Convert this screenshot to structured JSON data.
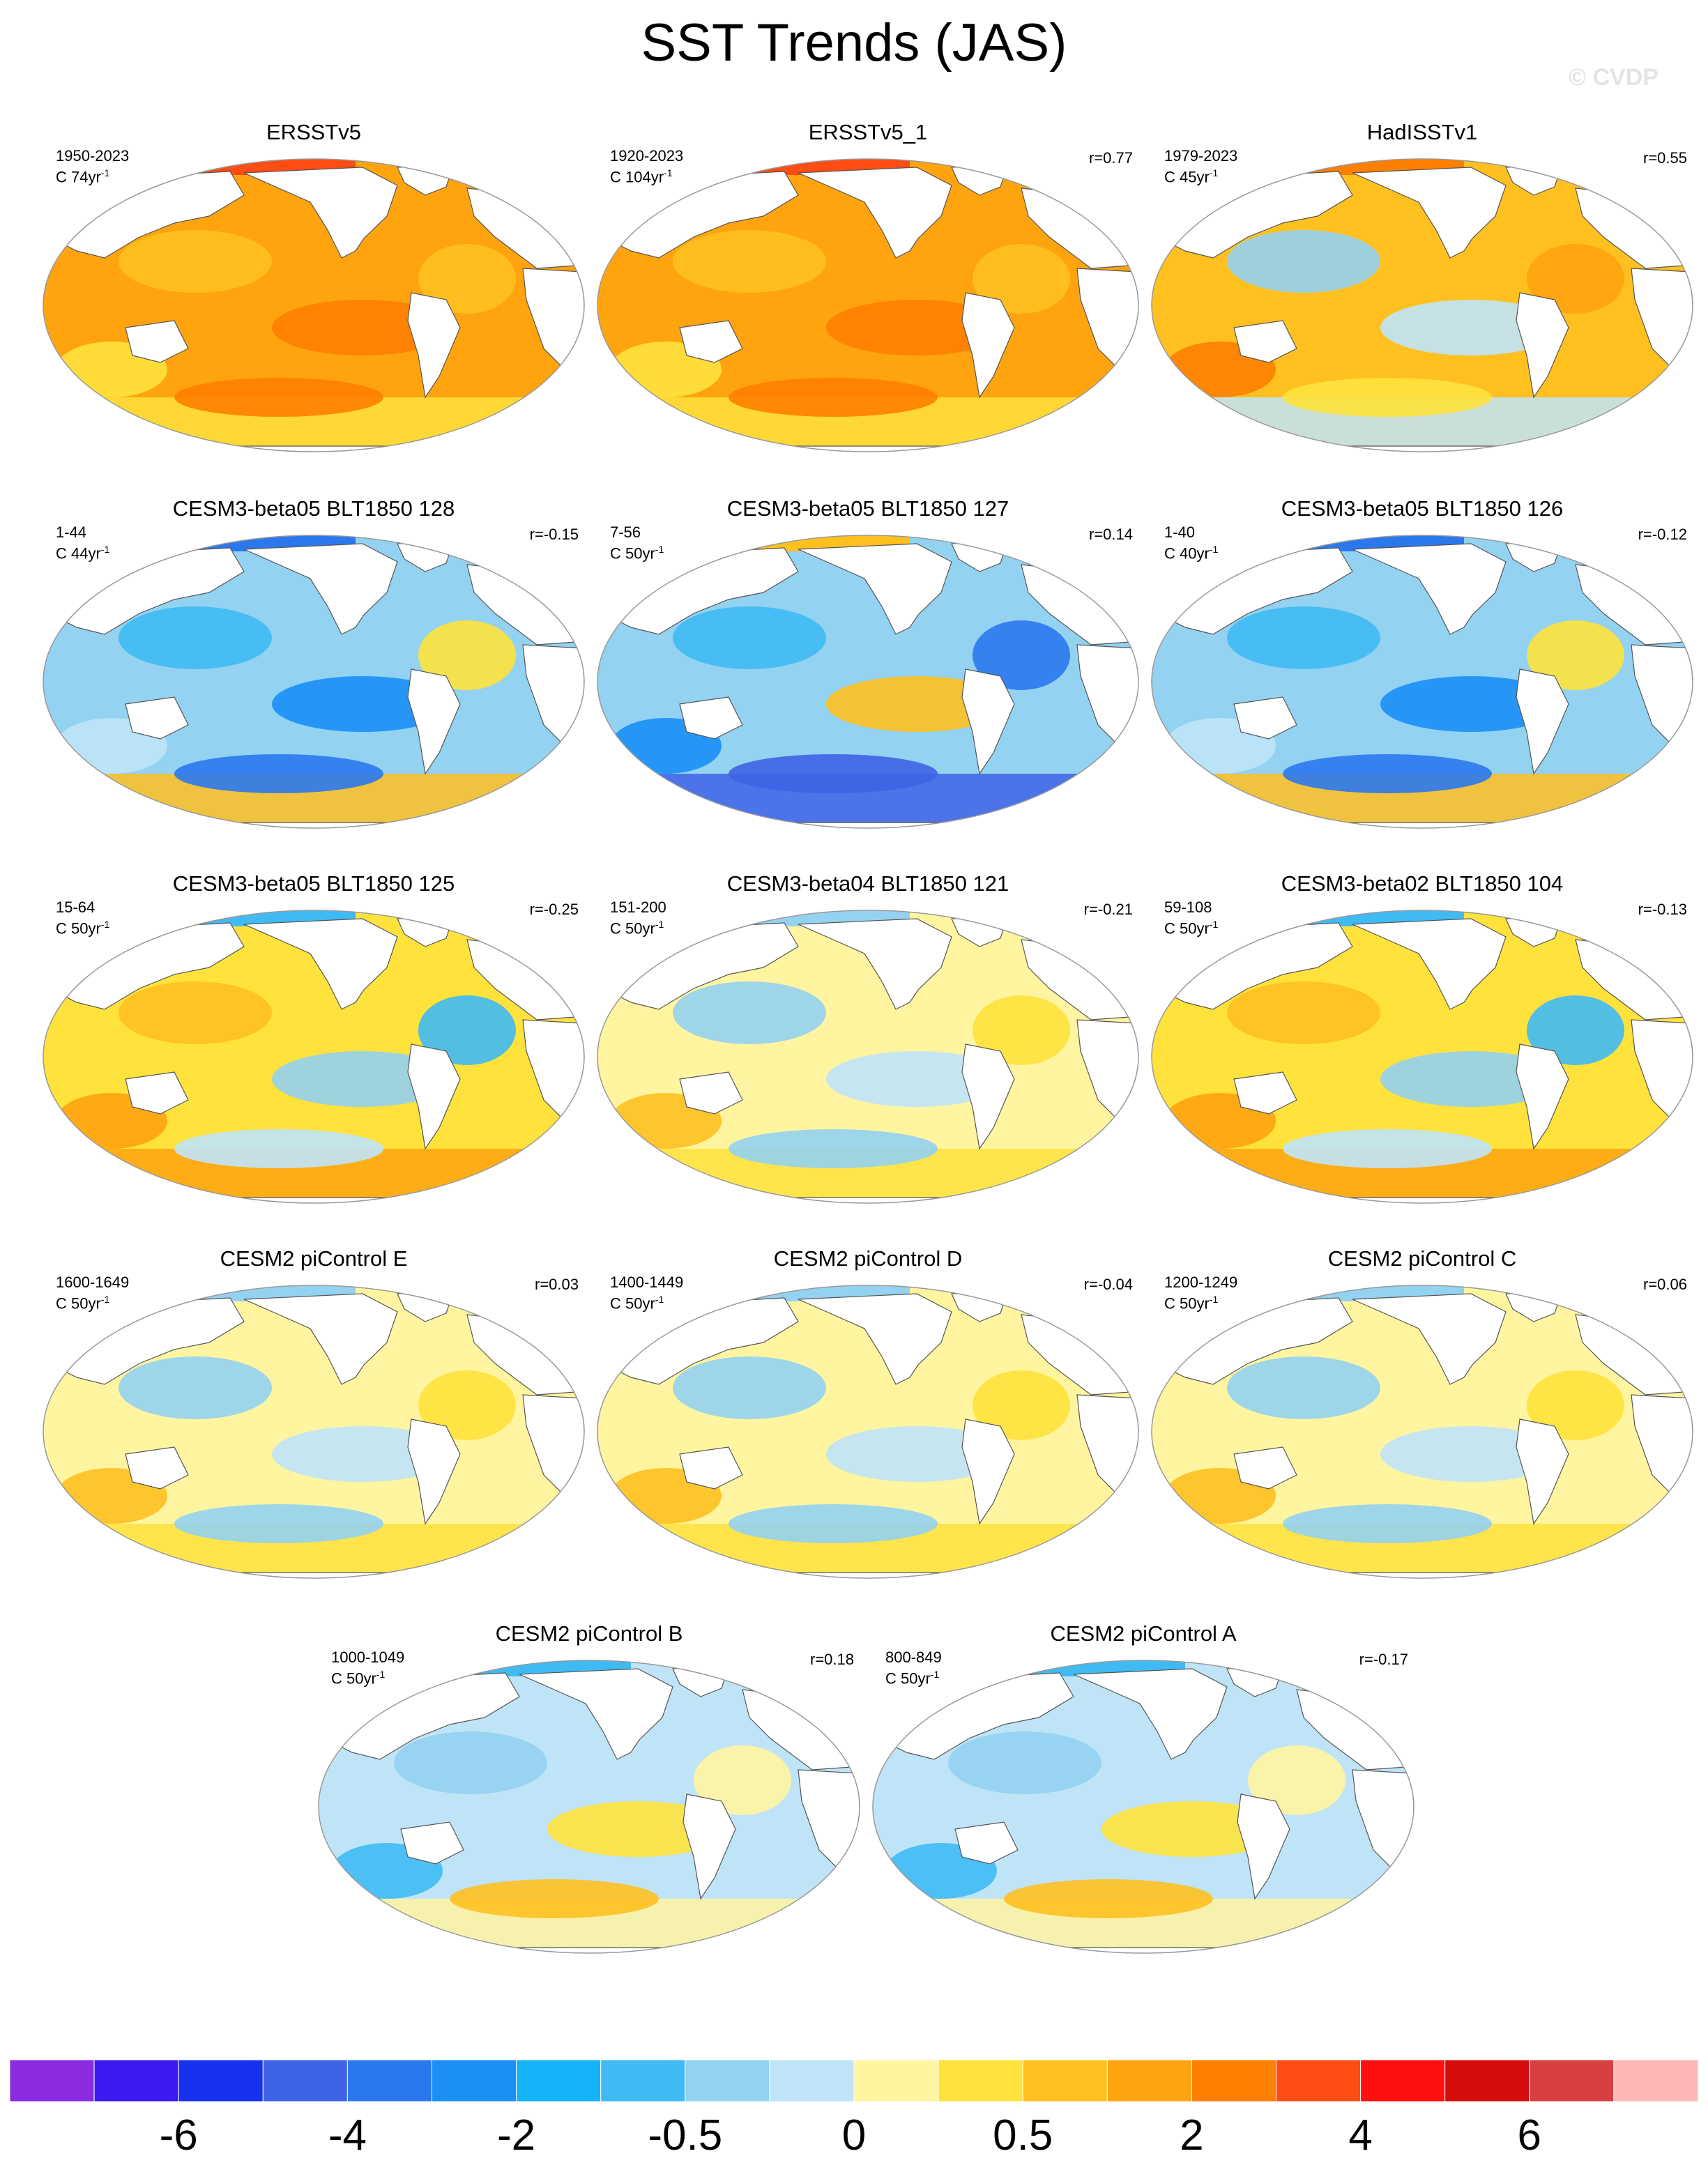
{
  "title": "SST Trends (JAS)",
  "watermark": "© CVDP",
  "panels": [
    {
      "title": "ERSSTv5",
      "period": "1950-2023",
      "trend_unit": "C 74yr",
      "r": "",
      "pattern": "warm-strong"
    },
    {
      "title": "ERSSTv5_1",
      "period": "1920-2023",
      "trend_unit": "C 104yr",
      "r": "r=0.77",
      "pattern": "warm-strong"
    },
    {
      "title": "HadISSTv1",
      "period": "1979-2023",
      "trend_unit": "C 45yr",
      "r": "r=0.55",
      "pattern": "warm-mixed"
    },
    {
      "title": "CESM3-beta05 BLT1850 128",
      "period": "1-44",
      "trend_unit": "C 44yr",
      "r": "r=-0.15",
      "pattern": "cool"
    },
    {
      "title": "CESM3-beta05 BLT1850 127",
      "period": "7-56",
      "trend_unit": "C 50yr",
      "r": "r=0.14",
      "pattern": "cool-strong"
    },
    {
      "title": "CESM3-beta05 BLT1850 126",
      "period": "1-40",
      "trend_unit": "C 40yr",
      "r": "r=-0.12",
      "pattern": "cool"
    },
    {
      "title": "CESM3-beta05 BLT1850 125",
      "period": "15-64",
      "trend_unit": "C 50yr",
      "r": "r=-0.25",
      "pattern": "mixed-warm"
    },
    {
      "title": "CESM3-beta04 BLT1850 121",
      "period": "151-200",
      "trend_unit": "C 50yr",
      "r": "r=-0.21",
      "pattern": "mixed"
    },
    {
      "title": "CESM3-beta02 BLT1850 104",
      "period": "59-108",
      "trend_unit": "C 50yr",
      "r": "r=-0.13",
      "pattern": "mixed-warm"
    },
    {
      "title": "CESM2 piControl E",
      "period": "1600-1649",
      "trend_unit": "C 50yr",
      "r": "r=0.03",
      "pattern": "mixed"
    },
    {
      "title": "CESM2 piControl D",
      "period": "1400-1449",
      "trend_unit": "C 50yr",
      "r": "r=-0.04",
      "pattern": "mixed"
    },
    {
      "title": "CESM2 piControl C",
      "period": "1200-1249",
      "trend_unit": "C 50yr",
      "r": "r=0.06",
      "pattern": "mixed"
    },
    {
      "title": "CESM2 piControl B",
      "period": "1000-1049",
      "trend_unit": "C 50yr",
      "r": "r=0.18",
      "pattern": "mixed-cool"
    },
    {
      "title": "CESM2 piControl A",
      "period": "800-849",
      "trend_unit": "C 50yr",
      "r": "r=-0.17",
      "pattern": "mixed-cool"
    }
  ],
  "trend_superscript": "-1",
  "chart_data": {
    "type": "heatmap",
    "title": "SST Trends (JAS)",
    "variable": "SST trend",
    "units": "C per period",
    "colorbar": {
      "labels": [
        "-6",
        "-4",
        "-2",
        "-0.5",
        "0",
        "0.5",
        "2",
        "4",
        "6"
      ],
      "colors": [
        "#8a2be2",
        "#3a1af0",
        "#1830ef",
        "#3f63e6",
        "#2b78ee",
        "#1a8ff6",
        "#14b2f8",
        "#3fbaf3",
        "#93d2f0",
        "#bfe4f8",
        "#fff5a0",
        "#ffe23c",
        "#ffc020",
        "#ffa30f",
        "#ff7f00",
        "#ff4d14",
        "#ff0f0f",
        "#d40c0c",
        "#d84040",
        "#ffb6b6"
      ]
    },
    "panels": [
      {
        "name": "ERSSTv5",
        "period": "1950-2023",
        "trend_length": "74yr",
        "r": null
      },
      {
        "name": "ERSSTv5_1",
        "period": "1920-2023",
        "trend_length": "104yr",
        "r": 0.77
      },
      {
        "name": "HadISSTv1",
        "period": "1979-2023",
        "trend_length": "45yr",
        "r": 0.55
      },
      {
        "name": "CESM3-beta05 BLT1850 128",
        "period": "1-44",
        "trend_length": "44yr",
        "r": -0.15
      },
      {
        "name": "CESM3-beta05 BLT1850 127",
        "period": "7-56",
        "trend_length": "50yr",
        "r": 0.14
      },
      {
        "name": "CESM3-beta05 BLT1850 126",
        "period": "1-40",
        "trend_length": "40yr",
        "r": -0.12
      },
      {
        "name": "CESM3-beta05 BLT1850 125",
        "period": "15-64",
        "trend_length": "50yr",
        "r": -0.25
      },
      {
        "name": "CESM3-beta04 BLT1850 121",
        "period": "151-200",
        "trend_length": "50yr",
        "r": -0.21
      },
      {
        "name": "CESM3-beta02 BLT1850 104",
        "period": "59-108",
        "trend_length": "50yr",
        "r": -0.13
      },
      {
        "name": "CESM2 piControl E",
        "period": "1600-1649",
        "trend_length": "50yr",
        "r": 0.03
      },
      {
        "name": "CESM2 piControl D",
        "period": "1400-1449",
        "trend_length": "50yr",
        "r": -0.04
      },
      {
        "name": "CESM2 piControl C",
        "period": "1200-1249",
        "trend_length": "50yr",
        "r": 0.06
      },
      {
        "name": "CESM2 piControl B",
        "period": "1000-1049",
        "trend_length": "50yr",
        "r": 0.18
      },
      {
        "name": "CESM2 piControl A",
        "period": "800-849",
        "trend_length": "50yr",
        "r": -0.17
      }
    ]
  }
}
